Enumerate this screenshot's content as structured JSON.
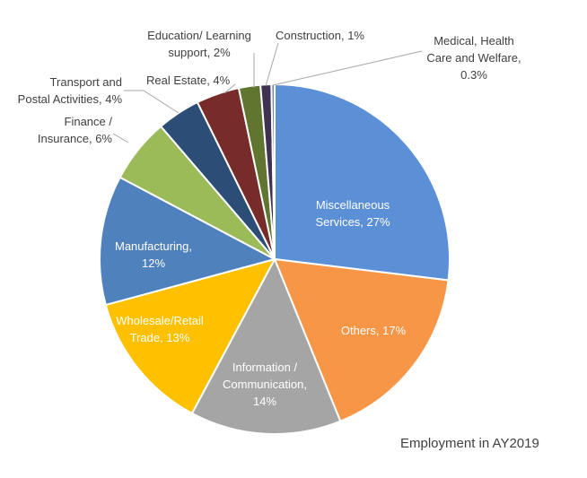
{
  "chart_data": {
    "type": "pie",
    "title": "",
    "caption": "Employment in AY2019",
    "unit": "%",
    "slices": [
      {
        "label": "Miscellaneous Services, 27%",
        "value": 27,
        "color": "#5B8FD6"
      },
      {
        "label": "Others, 17%",
        "value": 17,
        "color": "#F79646"
      },
      {
        "label": "Information / Communication, 14%",
        "value": 14,
        "color": "#A5A5A5"
      },
      {
        "label": "Wholesale/Retail Trade, 13%",
        "value": 13,
        "color": "#FFC000"
      },
      {
        "label": "Manufacturing, 12%",
        "value": 12,
        "color": "#4F81BD"
      },
      {
        "label": "Finance / Insurance, 6%",
        "value": 6,
        "color": "#9BBB59"
      },
      {
        "label": "Transport and Postal Activities, 4%",
        "value": 4,
        "color": "#2C4D75"
      },
      {
        "label": "Real Estate, 4%",
        "value": 4,
        "color": "#772C2A"
      },
      {
        "label": "Education/ Learning support, 2%",
        "value": 2,
        "color": "#5F7530"
      },
      {
        "label": "Construction, 1%",
        "value": 1,
        "color": "#3F3151"
      },
      {
        "label": "Medical, Health Care and Welfare, 0.3%",
        "value": 0.3,
        "color": "#6F89B6"
      }
    ],
    "legend": "none"
  }
}
